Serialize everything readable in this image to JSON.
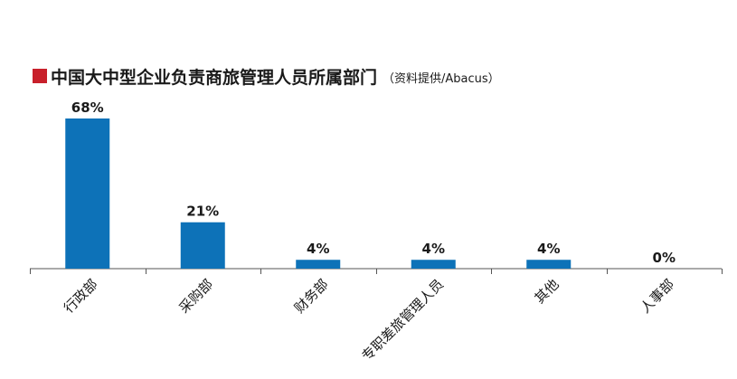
{
  "chart_data": {
    "type": "bar",
    "title": "中国大中型企业负责商旅管理人员所属部门",
    "subtitle": "（资料提供/Abacus）",
    "categories": [
      "行政部",
      "采购部",
      "财务部",
      "专职差旅管理人员",
      "其他",
      "人事部"
    ],
    "values": [
      68,
      21,
      4,
      4,
      4,
      0
    ],
    "value_labels": [
      "68%",
      "21%",
      "4%",
      "4%",
      "4%",
      "0%"
    ],
    "ylim": [
      0,
      70
    ],
    "xlabel": "",
    "ylabel": "",
    "grid": false,
    "legend": "none",
    "colors": {
      "bar": "#0d72b8",
      "title_marker": "#c8202b",
      "axis": "#555555",
      "text": "#1a1a1a"
    }
  }
}
